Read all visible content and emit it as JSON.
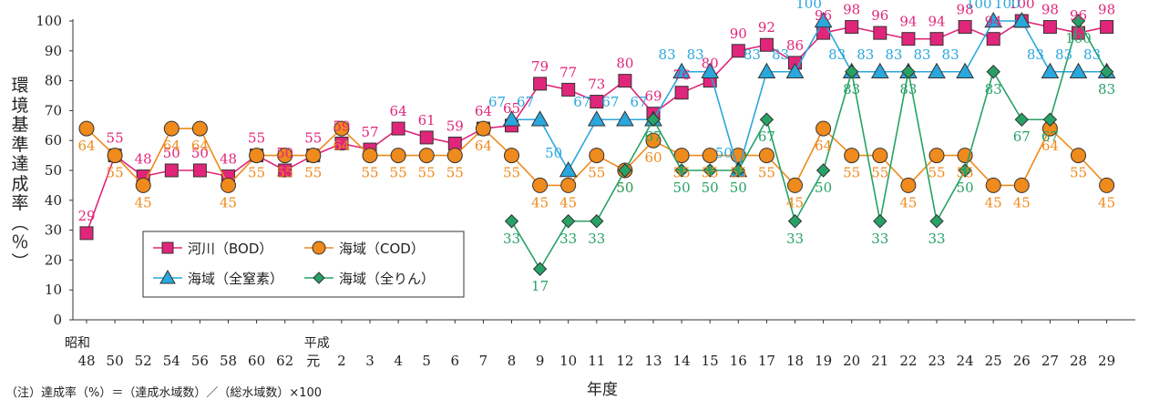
{
  "chart_data": {
    "type": "line",
    "ylabel": "環境基準達成率（％）",
    "xlabel": "年度",
    "ylim": [
      0,
      100
    ],
    "yticks": [
      0,
      10,
      20,
      30,
      40,
      50,
      60,
      70,
      80,
      90,
      100
    ],
    "era_labels": {
      "showa": "昭和",
      "heisei": "平成"
    },
    "categories": [
      "48",
      "50",
      "52",
      "54",
      "56",
      "58",
      "60",
      "62",
      "元",
      "2",
      "3",
      "4",
      "5",
      "6",
      "7",
      "8",
      "9",
      "10",
      "11",
      "12",
      "13",
      "14",
      "15",
      "16",
      "17",
      "18",
      "19",
      "20",
      "21",
      "22",
      "23",
      "24",
      "25",
      "26",
      "27",
      "28",
      "29"
    ],
    "series": [
      {
        "name": "河川（BOD）",
        "color": "#e0267a",
        "marker": "square",
        "values": [
          29,
          55,
          48,
          50,
          50,
          48,
          55,
          50,
          55,
          59,
          57,
          64,
          61,
          59,
          64,
          65,
          79,
          77,
          73,
          80,
          69,
          76,
          80,
          90,
          92,
          86,
          96,
          98,
          96,
          94,
          94,
          98,
          94,
          100,
          98,
          96,
          98
        ],
        "labels": [
          "29",
          "55",
          "48",
          "50",
          "50",
          "48",
          "55",
          "50",
          "55",
          "59",
          "57",
          "64",
          "61",
          "59",
          "64",
          "65",
          "79",
          "77",
          "73",
          "80",
          "69",
          "76",
          "80",
          "90",
          "92",
          "86",
          "96",
          "98",
          "96",
          "94",
          "94",
          "98",
          "94",
          "100",
          "98",
          "96",
          "98"
        ]
      },
      {
        "name": "海域（COD）",
        "color": "#ef8a1c",
        "marker": "circle",
        "values": [
          64,
          55,
          45,
          64,
          64,
          45,
          55,
          55,
          55,
          64,
          55,
          55,
          55,
          55,
          64,
          55,
          45,
          45,
          55,
          50,
          60,
          55,
          55,
          55,
          55,
          45,
          64,
          55,
          55,
          45,
          55,
          55,
          45,
          45,
          64,
          55,
          45
        ],
        "labels": [
          "64",
          "55",
          "45",
          "64",
          "64",
          "45",
          "55",
          "55",
          "55",
          "64",
          "55",
          "55",
          "55",
          "55",
          "64",
          "55",
          "45",
          "45",
          "55",
          "50",
          "60",
          "55",
          "55",
          "55",
          "55",
          "45",
          "64",
          "55",
          "55",
          "45",
          "55",
          "55",
          "45",
          "45",
          "64",
          "55",
          "45"
        ]
      },
      {
        "name": "海域（全窒素）",
        "color": "#2aa7dd",
        "marker": "triangle",
        "values": [
          null,
          null,
          null,
          null,
          null,
          null,
          null,
          null,
          null,
          null,
          null,
          null,
          null,
          null,
          null,
          67,
          67,
          50,
          67,
          67,
          67,
          83,
          83,
          50,
          83,
          83,
          100,
          83,
          83,
          83,
          83,
          83,
          100,
          100,
          83,
          83,
          83
        ],
        "labels": [
          null,
          null,
          null,
          null,
          null,
          null,
          null,
          null,
          null,
          null,
          null,
          null,
          null,
          null,
          null,
          "67",
          "67",
          "50",
          "67",
          "67",
          "67",
          "83",
          "83",
          "50",
          "83",
          "83",
          "100",
          "83",
          "83",
          "83",
          "83",
          "83",
          "100",
          "100",
          "83",
          "83",
          "83"
        ]
      },
      {
        "name": "海域（全りん）",
        "color": "#27a266",
        "marker": "diamond",
        "values": [
          null,
          null,
          null,
          null,
          null,
          null,
          null,
          null,
          null,
          null,
          null,
          null,
          null,
          null,
          null,
          33,
          17,
          33,
          33,
          50,
          67,
          50,
          50,
          50,
          67,
          33,
          50,
          83,
          33,
          83,
          33,
          50,
          83,
          67,
          67,
          100,
          83
        ],
        "labels": [
          null,
          null,
          null,
          null,
          null,
          null,
          null,
          null,
          null,
          null,
          null,
          null,
          null,
          null,
          null,
          "33",
          "17",
          "33",
          "33",
          "50",
          "67",
          "50",
          "50",
          "50",
          "67",
          "33",
          "50",
          "83",
          "33",
          "83",
          "33",
          "50",
          "83",
          "67",
          "67",
          "100",
          "83"
        ]
      }
    ],
    "grid": false,
    "legend_position": "bottom-left"
  },
  "note": "（注）達成率（%）＝（達成水域数）／（総水域数）×100"
}
